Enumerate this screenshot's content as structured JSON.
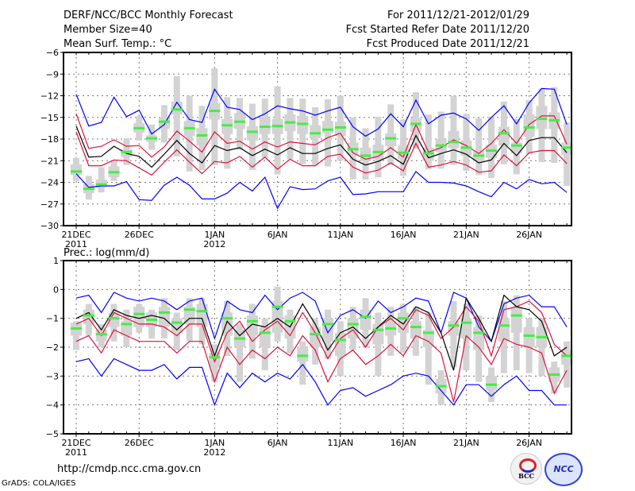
{
  "header": {
    "title": "DERF/NCC/BCC Monthly Forecast",
    "member_size": "Member Size=40",
    "variable": "Mean Surf. Temp.: °C",
    "period": "For 2011/12/21-2012/01/29",
    "started": "Fcst Started Refer Date 2011/12/20",
    "produced": "Fcst Produced Date 2011/12/21"
  },
  "footer": {
    "url": "http://cmdp.ncc.cma.gov.cn",
    "grads": "GrADS: COLA/IGES",
    "logo1": "BCC",
    "logo2": "NCC"
  },
  "colors": {
    "max_min": "#0000ff",
    "std": "#e0103a",
    "mean": "#000000",
    "median": "#44ee44",
    "box": "#d3d3d3"
  },
  "chart_data": [
    {
      "type": "line",
      "title": "Mean Surf. Temp.: °C",
      "ylim": [
        -30,
        -6
      ],
      "yticks": [
        -6,
        -9,
        -12,
        -15,
        -18,
        -21,
        -24,
        -27,
        -30
      ],
      "xtick_labels": [
        "21DEC\n2011",
        "26DEC",
        "1JAN\n2012",
        "6JAN",
        "11JAN",
        "16JAN",
        "21JAN",
        "26JAN"
      ],
      "xtick_days": [
        0,
        5,
        11,
        16,
        21,
        26,
        31,
        36
      ],
      "grid": true,
      "series": [
        {
          "name": "max",
          "values": [
            -11.8,
            -16.2,
            -15.7,
            -12.2,
            -14.9,
            -14.0,
            -17.3,
            -16.0,
            -12.9,
            -15.3,
            -15.7,
            -11.1,
            -13.6,
            -13.9,
            -15.3,
            -14.5,
            -13.4,
            -13.8,
            -14.1,
            -14.7,
            -14.1,
            -13.6,
            -16.3,
            -17.6,
            -16.6,
            -14.5,
            -16.3,
            -12.6,
            -15.9,
            -14.7,
            -14.4,
            -15.2,
            -16.8,
            -15.0,
            -13.4,
            -15.9,
            -13.0,
            -11.0,
            -11.1,
            -16.0
          ]
        },
        {
          "name": "std_upper",
          "values": [
            -14.5,
            -19.3,
            -19.0,
            -18.1,
            -19.0,
            -18.9,
            -20.5,
            -19.1,
            -16.9,
            -18.3,
            -19.8,
            -17.0,
            -18.6,
            -18.3,
            -19.4,
            -18.4,
            -19.1,
            -18.4,
            -18.6,
            -18.8,
            -17.8,
            -17.2,
            -19.9,
            -20.8,
            -20.4,
            -19.2,
            -20.5,
            -16.0,
            -19.8,
            -19.2,
            -18.1,
            -18.9,
            -20.0,
            -18.6,
            -16.7,
            -18.6,
            -16.0,
            -14.8,
            -14.8,
            -18.7
          ]
        },
        {
          "name": "mean",
          "values": [
            -16.2,
            -20.5,
            -20.4,
            -19.0,
            -20.0,
            -20.4,
            -21.9,
            -20.1,
            -18.2,
            -20.0,
            -21.3,
            -18.9,
            -19.6,
            -19.2,
            -20.3,
            -19.4,
            -20.2,
            -19.2,
            -20.0,
            -20.0,
            -19.3,
            -18.8,
            -20.8,
            -21.6,
            -21.1,
            -20.3,
            -21.5,
            -17.5,
            -20.6,
            -20.0,
            -19.5,
            -20.1,
            -21.3,
            -20.9,
            -18.6,
            -20.3,
            -18.2,
            -17.8,
            -17.8,
            -19.9
          ]
        },
        {
          "name": "std_lower",
          "values": [
            -17.0,
            -21.7,
            -21.7,
            -20.9,
            -21.0,
            -22.0,
            -23.0,
            -21.2,
            -19.5,
            -21.2,
            -22.8,
            -21.1,
            -21.3,
            -20.4,
            -21.9,
            -20.5,
            -22.2,
            -20.8,
            -21.7,
            -21.7,
            -20.4,
            -20.1,
            -21.9,
            -22.7,
            -22.3,
            -21.3,
            -22.4,
            -18.6,
            -21.9,
            -21.6,
            -21.1,
            -21.6,
            -22.6,
            -22.4,
            -20.2,
            -21.7,
            -19.9,
            -19.6,
            -19.6,
            -21.4
          ]
        },
        {
          "name": "min",
          "values": [
            -22.8,
            -24.7,
            -24.5,
            -24.5,
            -23.9,
            -26.4,
            -26.5,
            -24.4,
            -23.3,
            -24.4,
            -26.3,
            -26.3,
            -25.5,
            -24.0,
            -25.2,
            -23.3,
            -27.6,
            -24.6,
            -25.0,
            -24.9,
            -23.8,
            -23.3,
            -25.7,
            -25.6,
            -25.3,
            -25.3,
            -25.3,
            -22.5,
            -24.0,
            -24.0,
            -24.1,
            -24.5,
            -25.3,
            -26.0,
            -24.0,
            -24.9,
            -23.6,
            -24.2,
            -24.0,
            -25.4
          ]
        },
        {
          "name": "median",
          "values": [
            -22.5,
            -24.9,
            -24.3,
            -22.6,
            -19.8,
            -16.5,
            -17.9,
            -15.6,
            -13.9,
            -16.5,
            -17.5,
            -14.1,
            -16.1,
            -15.6,
            -17.0,
            -16.3,
            -16.2,
            -15.7,
            -15.9,
            -17.2,
            -16.7,
            -16.4,
            -19.4,
            -20.3,
            -19.8,
            -17.9,
            -19.9,
            -15.9,
            -20.0,
            -18.9,
            -18.4,
            -19.2,
            -20.3,
            -19.6,
            -17.2,
            -18.9,
            -16.4,
            -15.2,
            -15.4,
            -19.2
          ]
        },
        {
          "name": "box_q_upper",
          "values": [
            -21.5,
            -24.2,
            -23.6,
            -21.8,
            -19.4,
            -15.8,
            -17.5,
            -15.0,
            -12.8,
            -15.5,
            -16.5,
            -13.0,
            -15.2,
            -14.4,
            -16.2,
            -15.0,
            -15.2,
            -14.6,
            -14.8,
            -16.1,
            -15.5,
            -15.6,
            -18.5,
            -19.2,
            -18.8,
            -17.2,
            -18.9,
            -15.1,
            -19.2,
            -18.0,
            -16.9,
            -18.2,
            -19.7,
            -18.8,
            -16.3,
            -18.5,
            -14.6,
            -13.4,
            -14.3,
            -18.5
          ]
        },
        {
          "name": "box_q_lower",
          "values": [
            -23.0,
            -25.5,
            -24.7,
            -23.3,
            -20.5,
            -17.1,
            -18.4,
            -16.6,
            -14.6,
            -17.6,
            -18.9,
            -15.3,
            -17.3,
            -16.6,
            -18.2,
            -17.3,
            -17.3,
            -16.9,
            -17.3,
            -17.9,
            -17.2,
            -17.6,
            -20.2,
            -21.1,
            -20.8,
            -19.0,
            -20.8,
            -17.0,
            -21.0,
            -19.8,
            -19.2,
            -20.3,
            -21.1,
            -20.6,
            -18.9,
            -20.0,
            -17.7,
            -16.6,
            -16.6,
            -20.2
          ]
        },
        {
          "name": "box_whisker_upper",
          "values": [
            -20.6,
            -23.1,
            -21.9,
            -21.0,
            -17.9,
            -14.8,
            -16.0,
            -13.3,
            -9.3,
            -12.0,
            -13.4,
            -8.2,
            -12.2,
            -12.3,
            -13.1,
            -12.4,
            -10.7,
            -12.3,
            -12.4,
            -13.6,
            -12.5,
            -12.0,
            -15.0,
            -16.5,
            -14.9,
            -13.2,
            -15.3,
            -11.5,
            -14.6,
            -14.2,
            -12.0,
            -14.5,
            -15.1,
            -14.9,
            -12.8,
            -15.2,
            -12.6,
            -11.0,
            -10.8,
            -15.7
          ]
        },
        {
          "name": "box_whisker_lower",
          "values": [
            -23.8,
            -26.4,
            -25.4,
            -23.8,
            -21.6,
            -18.2,
            -19.5,
            -18.5,
            -20.4,
            -22.5,
            -22.3,
            -21.6,
            -22.1,
            -19.5,
            -22.3,
            -20.6,
            -22.9,
            -20.8,
            -21.5,
            -21.6,
            -21.8,
            -21.0,
            -23.6,
            -23.6,
            -23.3,
            -21.6,
            -23.1,
            -19.3,
            -22.2,
            -22.1,
            -21.6,
            -22.4,
            -23.0,
            -23.4,
            -21.5,
            -22.9,
            -20.1,
            -21.2,
            -21.3,
            -24.5
          ]
        }
      ]
    },
    {
      "type": "line",
      "title": "Prec.: log(mm/d)",
      "ylim": [
        -5,
        1
      ],
      "yticks": [
        1,
        0,
        -1,
        -2,
        -3,
        -4,
        -5
      ],
      "xtick_labels": [
        "21DEC\n2011",
        "26DEC",
        "1JAN\n2012",
        "6JAN",
        "11JAN",
        "16JAN",
        "21JAN",
        "26JAN"
      ],
      "xtick_days": [
        0,
        5,
        11,
        16,
        21,
        26,
        31,
        36
      ],
      "grid": true,
      "series": [
        {
          "name": "max",
          "values": [
            -0.3,
            -0.2,
            -0.8,
            -0.1,
            -0.3,
            -0.4,
            -0.3,
            -0.4,
            -0.7,
            -0.4,
            -0.3,
            -1.7,
            -0.4,
            -0.7,
            -0.8,
            -0.2,
            -0.7,
            -0.3,
            -0.1,
            -0.4,
            -1.5,
            -0.9,
            -0.7,
            -1.0,
            -0.4,
            -0.8,
            -0.6,
            -0.3,
            -0.4,
            -1.5,
            -0.1,
            -0.3,
            -1.3,
            -1.8,
            -0.5,
            -0.3,
            -0.2,
            -0.6,
            -0.6,
            -1.3
          ]
        },
        {
          "name": "std_upper",
          "values": [
            -1.2,
            -1.0,
            -1.6,
            -0.8,
            -1.0,
            -1.2,
            -1.2,
            -1.3,
            -1.6,
            -1.2,
            -1.2,
            -2.5,
            -1.5,
            -1.1,
            -1.8,
            -1.4,
            -1.1,
            -1.6,
            -0.8,
            -1.5,
            -2.4,
            -1.7,
            -1.4,
            -2.0,
            -1.3,
            -1.0,
            -1.4,
            -0.7,
            -0.9,
            -1.7,
            -1.3,
            -0.6,
            -1.1,
            -2.3,
            -0.7,
            -0.6,
            -0.4,
            -0.8,
            -1.9,
            -2.3
          ]
        },
        {
          "name": "mean",
          "values": [
            -1.0,
            -0.8,
            -1.4,
            -0.7,
            -0.9,
            -1.0,
            -0.9,
            -1.0,
            -1.4,
            -1.0,
            -1.0,
            -2.3,
            -1.1,
            -1.6,
            -1.2,
            -1.3,
            -1.0,
            -1.3,
            -0.5,
            -1.2,
            -2.1,
            -1.5,
            -1.3,
            -1.7,
            -1.3,
            -0.9,
            -1.2,
            -0.6,
            -0.8,
            -1.5,
            -2.8,
            -0.3,
            -1.0,
            -1.8,
            -0.2,
            -0.6,
            -0.7,
            -1.1,
            -2.3,
            -2.0
          ]
        },
        {
          "name": "std_lower",
          "values": [
            -1.8,
            -1.6,
            -2.2,
            -1.4,
            -1.6,
            -1.8,
            -1.8,
            -1.8,
            -2.2,
            -1.8,
            -1.8,
            -3.2,
            -2.0,
            -2.6,
            -2.1,
            -2.4,
            -2.0,
            -2.3,
            -1.6,
            -2.1,
            -3.2,
            -2.4,
            -2.1,
            -2.6,
            -2.3,
            -1.9,
            -2.3,
            -1.6,
            -1.8,
            -2.2,
            -3.9,
            -1.6,
            -2.0,
            -2.6,
            -1.7,
            -1.9,
            -2.0,
            -2.2,
            -3.6,
            -2.8
          ]
        },
        {
          "name": "min",
          "values": [
            -2.5,
            -2.4,
            -3.0,
            -2.4,
            -2.6,
            -2.8,
            -2.8,
            -2.6,
            -3.1,
            -2.7,
            -2.7,
            -4.0,
            -2.9,
            -3.4,
            -2.9,
            -3.2,
            -2.9,
            -3.1,
            -2.6,
            -3.2,
            -4.0,
            -3.5,
            -3.4,
            -3.7,
            -3.5,
            -3.3,
            -3.0,
            -2.9,
            -3.0,
            -3.5,
            -4.0,
            -3.3,
            -3.3,
            -3.7,
            -3.3,
            -3.0,
            -3.5,
            -3.5,
            -4.0,
            -4.0
          ]
        },
        {
          "name": "median",
          "values": [
            -1.35,
            -0.9,
            -1.55,
            -1.0,
            -1.2,
            -0.85,
            -1.05,
            -0.8,
            -1.15,
            -0.7,
            -0.75,
            -2.35,
            -1.0,
            -1.7,
            -1.1,
            -1.5,
            -0.6,
            -1.1,
            -2.3,
            -1.55,
            -1.2,
            -1.75,
            -1.2,
            -0.95,
            -1.4,
            -1.35,
            -1.0,
            -1.3,
            -1.5,
            -3.35,
            -1.25,
            -1.15,
            -1.5,
            -3.3,
            -1.25,
            -0.9,
            -1.6,
            -1.65,
            -2.95,
            -2.3
          ]
        },
        {
          "name": "box_q_upper",
          "values": [
            -1.15,
            -0.7,
            -1.4,
            -0.8,
            -1.1,
            -0.6,
            -0.8,
            -0.6,
            -1.0,
            -0.6,
            -0.5,
            -2.2,
            -0.8,
            -1.4,
            -0.9,
            -1.3,
            -0.4,
            -0.9,
            -2.0,
            -1.3,
            -1.0,
            -1.5,
            -1.0,
            -0.7,
            -1.2,
            -1.1,
            -0.8,
            -1.1,
            -1.4,
            -3.1,
            -1.1,
            -1.0,
            -1.3,
            -3.0,
            -1.0,
            -0.6,
            -1.3,
            -1.3,
            -2.7,
            -2.1
          ]
        },
        {
          "name": "box_q_lower",
          "values": [
            -1.6,
            -1.2,
            -1.8,
            -1.3,
            -1.6,
            -1.3,
            -1.3,
            -1.3,
            -1.5,
            -1.2,
            -1.3,
            -2.7,
            -1.6,
            -2.0,
            -1.6,
            -2.0,
            -1.5,
            -1.7,
            -2.5,
            -2.0,
            -1.8,
            -2.3,
            -1.7,
            -1.4,
            -1.9,
            -1.6,
            -1.5,
            -1.7,
            -2.0,
            -3.6,
            -1.6,
            -1.7,
            -2.1,
            -3.5,
            -1.8,
            -1.5,
            -2.0,
            -2.0,
            -3.2,
            -2.6
          ]
        },
        {
          "name": "box_whisker_upper",
          "values": [
            -1.1,
            -0.5,
            -1.2,
            -0.5,
            -0.7,
            -0.5,
            -0.7,
            -0.3,
            -0.8,
            -0.3,
            -0.3,
            -1.9,
            -0.4,
            -1.2,
            -0.5,
            -1.0,
            0.1,
            -0.7,
            -1.8,
            -1.0,
            -0.7,
            -1.1,
            -0.6,
            -0.3,
            -0.8,
            -0.6,
            -0.5,
            -0.6,
            -0.8,
            -2.8,
            -0.4,
            -0.5,
            -0.9,
            -2.7,
            -0.4,
            -0.2,
            -1.0,
            -1.0,
            -2.5,
            -1.8
          ]
        },
        {
          "name": "box_whisker_lower",
          "values": [
            -2.1,
            -1.6,
            -2.0,
            -1.8,
            -2.0,
            -1.5,
            -1.7,
            -1.7,
            -2.1,
            -1.8,
            -1.9,
            -3.2,
            -2.3,
            -3.2,
            -2.4,
            -2.8,
            -1.8,
            -2.2,
            -3.3,
            -2.6,
            -2.4,
            -3.0,
            -2.1,
            -2.0,
            -3.0,
            -2.3,
            -2.2,
            -2.3,
            -3.3,
            -4.0,
            -2.7,
            -2.8,
            -3.2,
            -3.9,
            -2.9,
            -2.8,
            -2.9,
            -3.0,
            -3.6,
            -3.4
          ]
        }
      ]
    }
  ]
}
